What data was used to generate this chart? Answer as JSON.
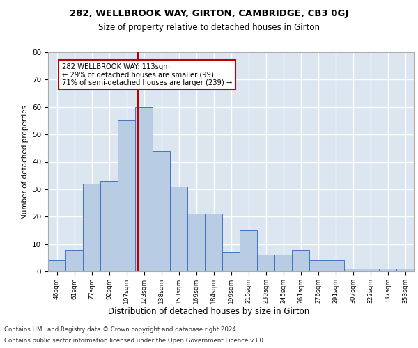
{
  "title1": "282, WELLBROOK WAY, GIRTON, CAMBRIDGE, CB3 0GJ",
  "title2": "Size of property relative to detached houses in Girton",
  "xlabel": "Distribution of detached houses by size in Girton",
  "ylabel": "Number of detached properties",
  "categories": [
    "46sqm",
    "61sqm",
    "77sqm",
    "92sqm",
    "107sqm",
    "123sqm",
    "138sqm",
    "153sqm",
    "169sqm",
    "184sqm",
    "199sqm",
    "215sqm",
    "230sqm",
    "245sqm",
    "261sqm",
    "276sqm",
    "291sqm",
    "307sqm",
    "322sqm",
    "337sqm",
    "353sqm"
  ],
  "values": [
    4,
    8,
    32,
    33,
    55,
    60,
    44,
    31,
    21,
    21,
    7,
    15,
    6,
    6,
    8,
    4,
    4,
    1,
    1,
    1,
    1
  ],
  "bar_color": "#b8cce4",
  "bar_edge_color": "#4472c4",
  "vline_x": 4.65,
  "vline_color": "#c00000",
  "annotation_text": "282 WELLBROOK WAY: 113sqm\n← 29% of detached houses are smaller (99)\n71% of semi-detached houses are larger (239) →",
  "annotation_box_color": "white",
  "annotation_box_edge_color": "#c00000",
  "ylim": [
    0,
    80
  ],
  "yticks": [
    0,
    10,
    20,
    30,
    40,
    50,
    60,
    70,
    80
  ],
  "background_color": "#dce6f1",
  "grid_color": "white",
  "footer1": "Contains HM Land Registry data © Crown copyright and database right 2024.",
  "footer2": "Contains public sector information licensed under the Open Government Licence v3.0."
}
